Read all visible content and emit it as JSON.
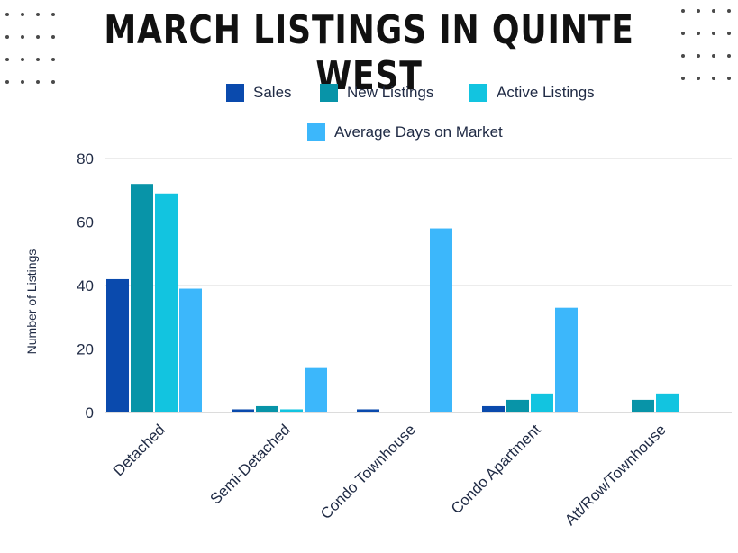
{
  "chart_data": {
    "type": "bar",
    "title": "MARCH LISTINGS IN QUINTE WEST",
    "ylabel": "Number of Listings",
    "xlabel": "",
    "ylim": [
      0,
      80
    ],
    "yticks": [
      0,
      20,
      40,
      60,
      80
    ],
    "grid": true,
    "legend": "top",
    "categories": [
      "Detached",
      "Semi-Detached",
      "Condo Townhouse",
      "Condo Apartment",
      "Att/Row/Townhouse"
    ],
    "series": [
      {
        "name": "Sales",
        "color": "#0a4aad",
        "values": [
          42,
          1,
          1,
          2,
          0
        ]
      },
      {
        "name": "New Listings",
        "color": "#0894a8",
        "values": [
          72,
          2,
          0,
          4,
          4
        ]
      },
      {
        "name": "Active Listings",
        "color": "#12c4e0",
        "values": [
          69,
          1,
          0,
          6,
          6
        ]
      },
      {
        "name": "Average Days on Market",
        "color": "#3cb7fb",
        "values": [
          39,
          14,
          58,
          33,
          0
        ]
      }
    ]
  }
}
